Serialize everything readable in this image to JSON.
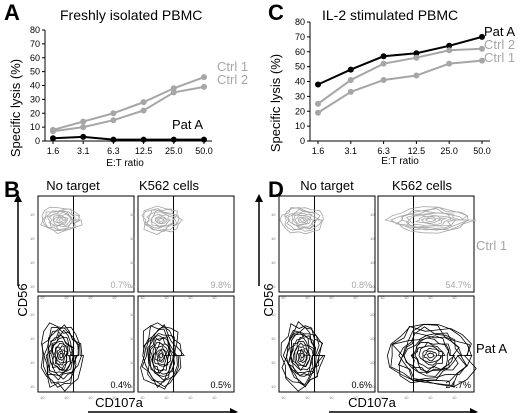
{
  "panels": {
    "A": "A",
    "B": "B",
    "C": "C",
    "D": "D"
  },
  "chart_data": [
    {
      "type": "line",
      "panel": "A",
      "title": "Freshly isolated PBMC",
      "xlabel": "E:T ratio",
      "ylabel": "Specific lysis (%)",
      "categories": [
        "1.6",
        "3.1",
        "6.3",
        "12.5",
        "25.0",
        "50.0"
      ],
      "ylim": [
        0,
        80
      ],
      "yticks": [
        "0",
        "10",
        "20",
        "30",
        "40",
        "50",
        "60",
        "70",
        "80"
      ],
      "series": [
        {
          "name": "Ctrl 1",
          "color": "#a6a6a6",
          "values": [
            8,
            14,
            20,
            28,
            38,
            46
          ]
        },
        {
          "name": "Ctrl 2",
          "color": "#a6a6a6",
          "values": [
            7,
            10,
            15,
            22,
            35,
            39
          ]
        },
        {
          "name": "Pat A",
          "color": "#000000",
          "values": [
            2,
            3,
            1,
            1,
            1,
            1
          ]
        }
      ]
    },
    {
      "type": "line",
      "panel": "C",
      "title": "IL-2 stimulated PBMC",
      "xlabel": "E:T ratio",
      "ylabel": "Specific lysis (%)",
      "categories": [
        "1.6",
        "3.1",
        "6.3",
        "12.5",
        "25.0",
        "50.0"
      ],
      "ylim": [
        0,
        80
      ],
      "yticks": [
        "0",
        "10",
        "20",
        "30",
        "40",
        "50",
        "60",
        "70",
        "80"
      ],
      "series": [
        {
          "name": "Pat A",
          "color": "#000000",
          "values": [
            38,
            48,
            57,
            59,
            64,
            70
          ]
        },
        {
          "name": "Ctrl 2",
          "color": "#a6a6a6",
          "values": [
            25,
            41,
            52,
            56,
            61,
            62
          ]
        },
        {
          "name": "Ctrl 1",
          "color": "#a6a6a6",
          "values": [
            19,
            33,
            41,
            44,
            52,
            54
          ]
        }
      ]
    }
  ],
  "facs": {
    "B": {
      "col_labels": [
        "No target",
        "K562 cells"
      ],
      "y_axis": "CD56",
      "x_axis": "CD107a",
      "rows": [
        {
          "name": "",
          "color": "#a6a6a6",
          "percents": [
            "0.7%",
            "9.8%"
          ]
        },
        {
          "name": "",
          "color": "#000000",
          "percents": [
            "0.4%",
            "0.5%"
          ]
        }
      ]
    },
    "D": {
      "col_labels": [
        "No target",
        "K562 cells"
      ],
      "y_axis": "CD56",
      "x_axis": "CD107a",
      "rows": [
        {
          "name": "Ctrl 1",
          "color": "#a6a6a6",
          "percents": [
            "0.8%",
            "54.7%"
          ]
        },
        {
          "name": "Pat A",
          "color": "#000000",
          "percents": [
            "0.6%",
            "24.7%"
          ]
        }
      ]
    }
  }
}
